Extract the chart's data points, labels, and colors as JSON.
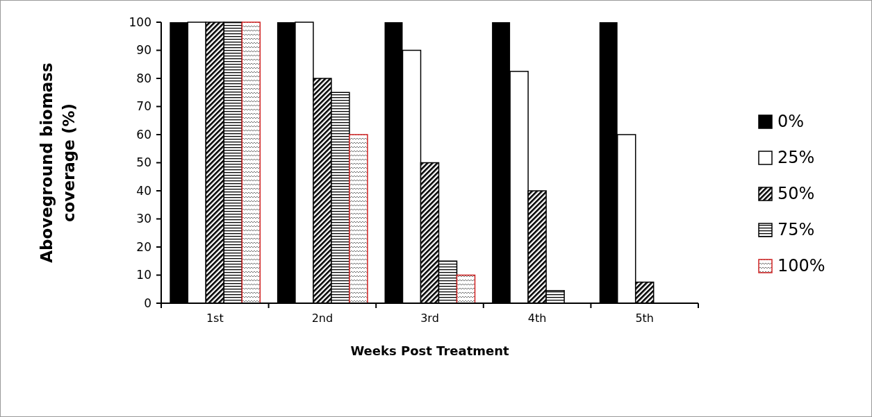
{
  "chart_data": {
    "type": "bar",
    "xlabel": "Weeks Post Treatment",
    "ylabel": "Aboveground biomass coverage (%)",
    "categories": [
      "1st",
      "2nd",
      "3rd",
      "4th",
      "5th"
    ],
    "series": [
      {
        "name": "0%",
        "color": "#000000",
        "values": [
          100,
          100,
          100,
          100,
          100
        ]
      },
      {
        "name": "25%",
        "color": "#ffffff",
        "values": [
          100,
          100,
          90,
          82.5,
          60
        ]
      },
      {
        "name": "50%",
        "color": "#000000",
        "values": [
          100,
          80,
          50,
          40,
          7.5
        ]
      },
      {
        "name": "75%",
        "color": "#000000",
        "values": [
          100,
          75,
          15,
          4.5,
          0
        ]
      },
      {
        "name": "100%",
        "color": "#d02020",
        "values": [
          100,
          60,
          10,
          0,
          0
        ]
      }
    ],
    "ylim": [
      0,
      100
    ],
    "yticks": [
      0,
      10,
      20,
      30,
      40,
      50,
      60,
      70,
      80,
      90,
      100
    ],
    "grid": false,
    "legend": "right"
  }
}
